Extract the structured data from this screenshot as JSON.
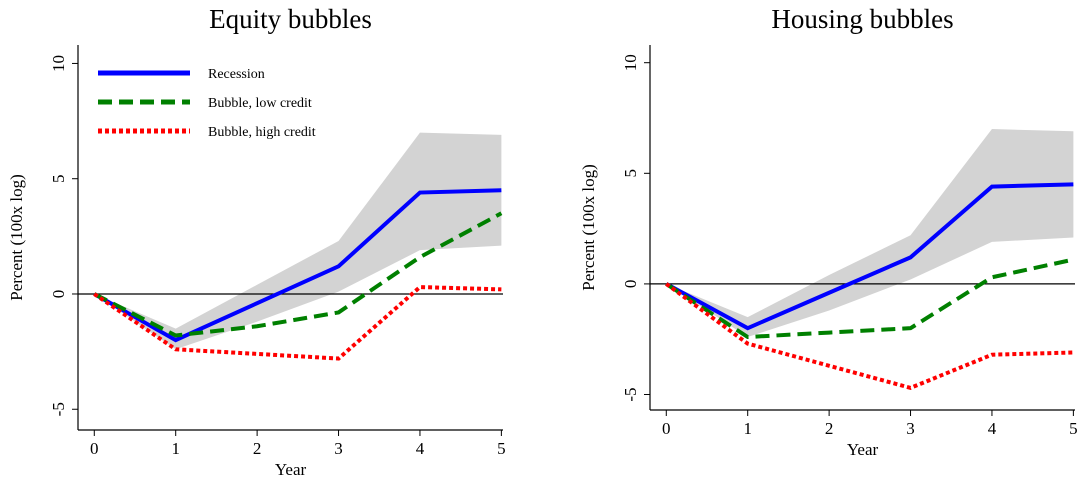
{
  "chart_data": [
    {
      "type": "line",
      "title": "Equity bubbles",
      "xlabel": "Year",
      "ylabel": "Percent (100x log)",
      "x": [
        0,
        1,
        2,
        3,
        4,
        5
      ],
      "xlim": [
        -0.2,
        5.02
      ],
      "ylim": [
        -5.9,
        10.8
      ],
      "xticks": [
        0,
        1,
        2,
        3,
        4,
        5
      ],
      "yticks": [
        -5,
        0,
        5,
        10
      ],
      "band": {
        "color": "#d3d3d3",
        "upper": [
          0,
          -1.5,
          0.4,
          2.3,
          7.0,
          6.9
        ],
        "lower": [
          0,
          -2.4,
          -1.2,
          0.1,
          1.9,
          2.1
        ]
      },
      "hline": 0,
      "legend": "top-left",
      "series": [
        {
          "name": "Recession",
          "color": "#0000ff",
          "style": "solid",
          "values": [
            0,
            -2.0,
            -0.4,
            1.2,
            4.4,
            4.5
          ]
        },
        {
          "name": "Bubble, low credit",
          "color": "#008000",
          "style": "dashed",
          "values": [
            0,
            -1.8,
            -1.4,
            -0.8,
            1.6,
            3.5
          ]
        },
        {
          "name": "Bubble, high credit",
          "color": "#ff0000",
          "style": "dotted",
          "values": [
            0,
            -2.4,
            -2.6,
            -2.8,
            0.3,
            0.2
          ]
        }
      ]
    },
    {
      "type": "line",
      "title": "Housing bubbles",
      "xlabel": "Year",
      "ylabel": "Percent (100x log)",
      "x": [
        0,
        1,
        2,
        3,
        4,
        5
      ],
      "xlim": [
        -0.2,
        5.02
      ],
      "ylim": [
        -5.7,
        10.8
      ],
      "xticks": [
        0,
        1,
        2,
        3,
        4,
        5
      ],
      "yticks": [
        -5,
        0,
        5,
        10
      ],
      "band": {
        "color": "#d3d3d3",
        "upper": [
          0,
          -1.5,
          0.4,
          2.2,
          7.0,
          6.9
        ],
        "lower": [
          0,
          -2.4,
          -1.2,
          0.2,
          1.9,
          2.1
        ]
      },
      "hline": 0,
      "series": [
        {
          "color": "#0000ff",
          "style": "solid",
          "values": [
            0,
            -2.0,
            -0.4,
            1.2,
            4.4,
            4.5
          ]
        },
        {
          "color": "#008000",
          "style": "dashed",
          "values": [
            0,
            -2.4,
            -2.2,
            -2.0,
            0.3,
            1.1
          ]
        },
        {
          "color": "#ff0000",
          "style": "dotted",
          "values": [
            0,
            -2.7,
            -3.7,
            -4.7,
            -3.2,
            -3.1
          ]
        }
      ]
    }
  ]
}
